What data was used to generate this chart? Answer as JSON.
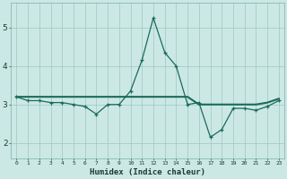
{
  "x": [
    0,
    1,
    2,
    3,
    4,
    5,
    6,
    7,
    8,
    9,
    10,
    11,
    12,
    13,
    14,
    15,
    16,
    17,
    18,
    19,
    20,
    21,
    22,
    23
  ],
  "y_line": [
    3.2,
    3.1,
    3.1,
    3.05,
    3.05,
    3.0,
    2.95,
    2.75,
    3.0,
    3.0,
    3.35,
    4.15,
    5.25,
    4.35,
    4.0,
    3.0,
    3.05,
    2.15,
    2.35,
    2.9,
    2.9,
    2.85,
    2.95,
    3.1
  ],
  "y_trend": [
    3.2,
    3.2,
    3.2,
    3.2,
    3.2,
    3.2,
    3.2,
    3.2,
    3.2,
    3.2,
    3.2,
    3.2,
    3.2,
    3.2,
    3.2,
    3.2,
    3.0,
    3.0,
    3.0,
    3.0,
    3.0,
    3.0,
    3.05,
    3.15
  ],
  "color_line": "#1a6b5a",
  "color_trend": "#1a6b5a",
  "bg_color": "#cce8e4",
  "grid_color": "#9cc8c0",
  "xlabel": "Humidex (Indice chaleur)",
  "ylabel_ticks": [
    2,
    3,
    4,
    5
  ],
  "xlim": [
    -0.5,
    23.5
  ],
  "ylim": [
    1.6,
    5.65
  ]
}
